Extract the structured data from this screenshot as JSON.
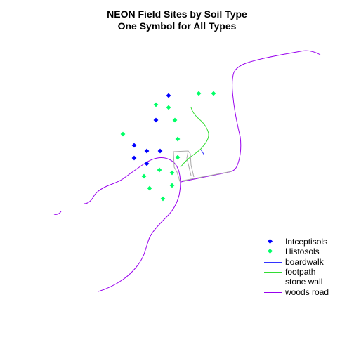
{
  "title": {
    "line1": "NEON Field Sites by Soil Type",
    "line2": "One Symbol for All Types"
  },
  "colors": {
    "intceptisols": "#0000ff",
    "histosols": "#00ff66",
    "boardwalk": "#3333ff",
    "footpath": "#33dd33",
    "stone_wall": "#aaaaaa",
    "woods_road": "#9900ee"
  },
  "legend": [
    {
      "label": "Intceptisols",
      "kind": "point",
      "color": "#0000ff"
    },
    {
      "label": "Histosols",
      "kind": "point",
      "color": "#00ff66"
    },
    {
      "label": "boardwalk",
      "kind": "line",
      "color": "#3333ff"
    },
    {
      "label": "footpath",
      "kind": "line",
      "color": "#33dd33"
    },
    {
      "label": "stone wall",
      "kind": "line",
      "color": "#aaaaaa"
    },
    {
      "label": "woods road",
      "kind": "line",
      "color": "#9900ee"
    }
  ]
}
